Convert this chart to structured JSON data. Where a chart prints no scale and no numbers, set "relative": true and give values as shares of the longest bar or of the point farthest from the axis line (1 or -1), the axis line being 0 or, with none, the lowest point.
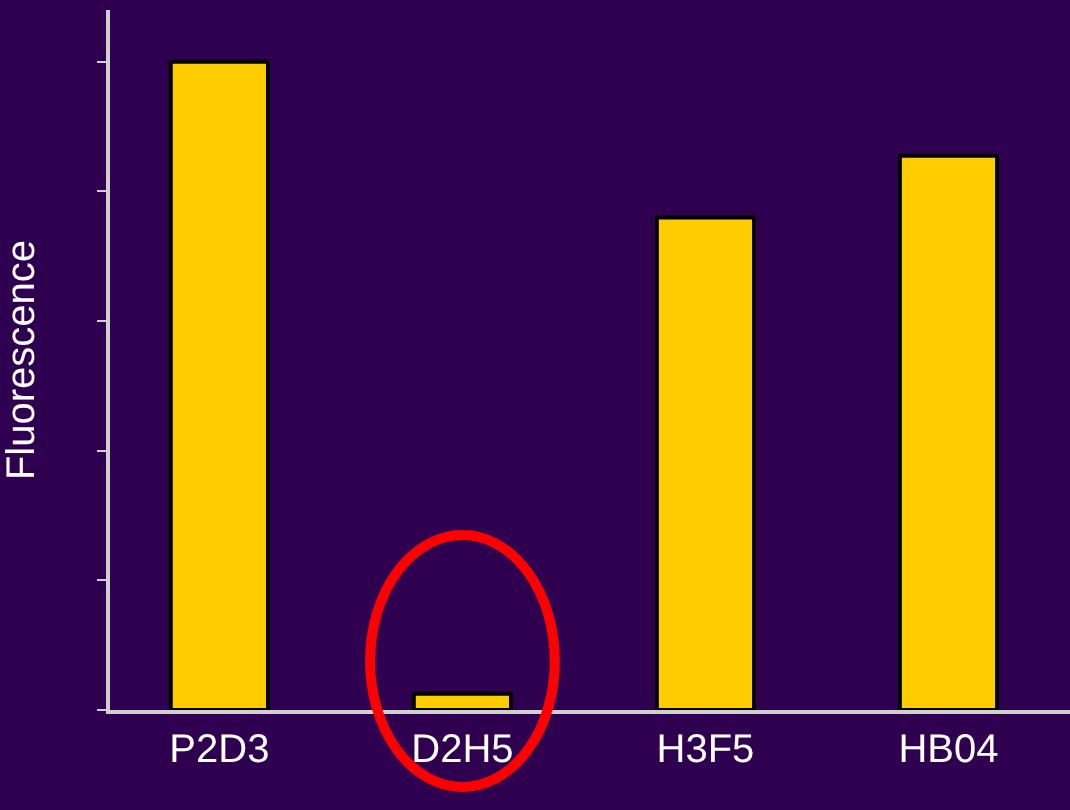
{
  "chart_data": {
    "type": "bar",
    "ylabel": "Fluorescence",
    "relative": true,
    "categories": [
      "P2D3",
      "D2H5",
      "H3F5",
      "HB04"
    ],
    "values": [
      1,
      0.025,
      0.76,
      0.855
    ],
    "color": "#ffcc00",
    "grid": false,
    "legend": false
  }
}
